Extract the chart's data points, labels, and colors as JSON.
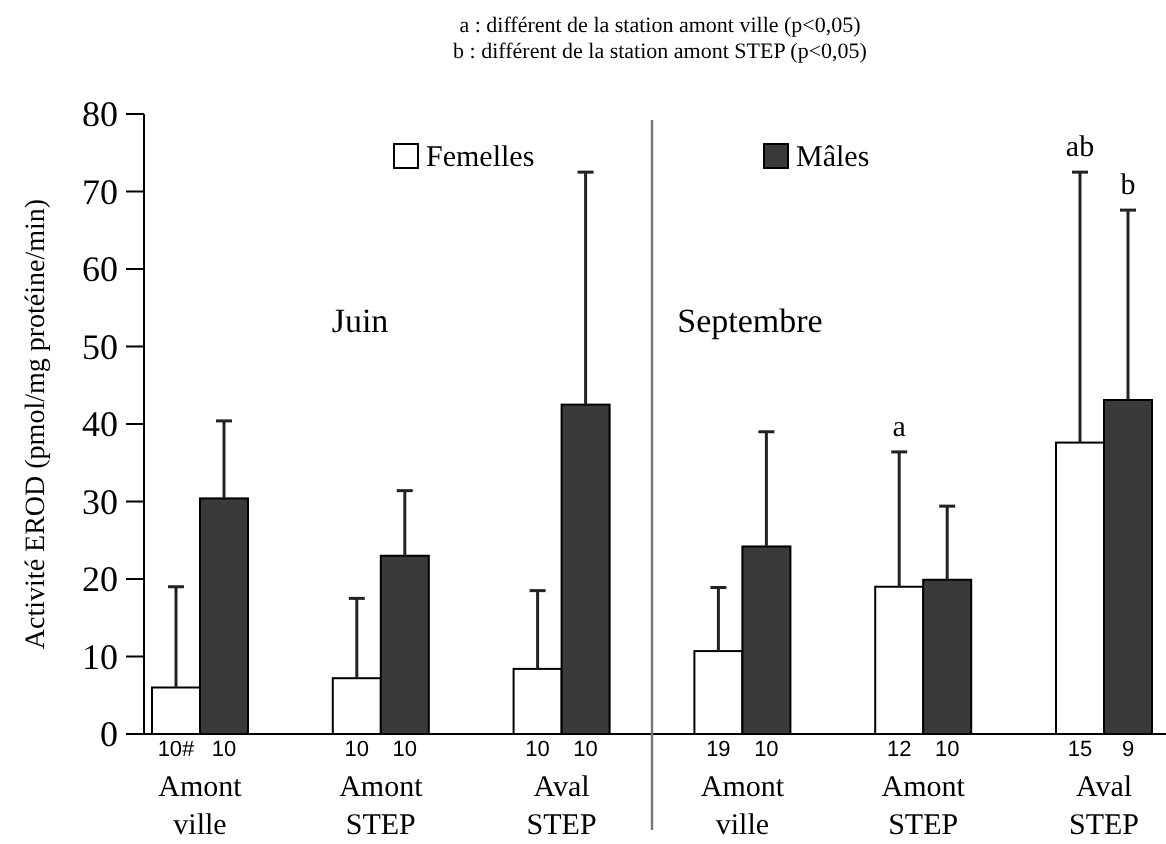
{
  "chart_data": {
    "type": "bar",
    "ylabel": "Activité EROD (pmol/mg protéine/min)",
    "categories": [
      "Amont\nville",
      "Amont\nSTEP",
      "Aval\nSTEP",
      "Amont\nville",
      "Amont\nSTEP",
      "Aval\nSTEP"
    ],
    "series": [
      {
        "name": "Femelles",
        "color": "#ffffff",
        "values": [
          6,
          7.2,
          8.4,
          10.7,
          19,
          37.6
        ],
        "errors": [
          [
            6,
            19
          ],
          [
            7.2,
            17.5
          ],
          [
            8.4,
            18.5
          ],
          [
            10.7,
            18.9
          ],
          [
            19,
            36.4
          ],
          [
            37.6,
            72.5
          ]
        ]
      },
      {
        "name": "Mâles",
        "color": "#3a3a3a",
        "values": [
          30.4,
          23,
          42.5,
          24.2,
          19.9,
          43.1
        ],
        "errors": [
          [
            30.4,
            40.4
          ],
          [
            23,
            31.4
          ],
          [
            42.5,
            72.5
          ],
          [
            24.2,
            39
          ],
          [
            19.9,
            29.4
          ],
          [
            43.1,
            67.6
          ]
        ]
      }
    ],
    "ylim": [
      0,
      80
    ],
    "yticks": [
      0,
      10,
      20,
      30,
      40,
      50,
      60,
      70,
      80
    ],
    "grid": false,
    "legend": "top",
    "annotations": [
      "a :  différent de la station amont ville (p<0,05)",
      "b : différent de la station amont STEP (p<0,05)",
      "Juin",
      "Septembre",
      {
        "text": "a",
        "y": 36.4
      },
      {
        "text": "ab",
        "y": 72.5
      },
      {
        "text": "b",
        "y": 67.6
      },
      "10#",
      "10",
      "10",
      "10",
      "10",
      "10",
      "19",
      "10",
      "12",
      "10",
      "15",
      "9"
    ]
  }
}
